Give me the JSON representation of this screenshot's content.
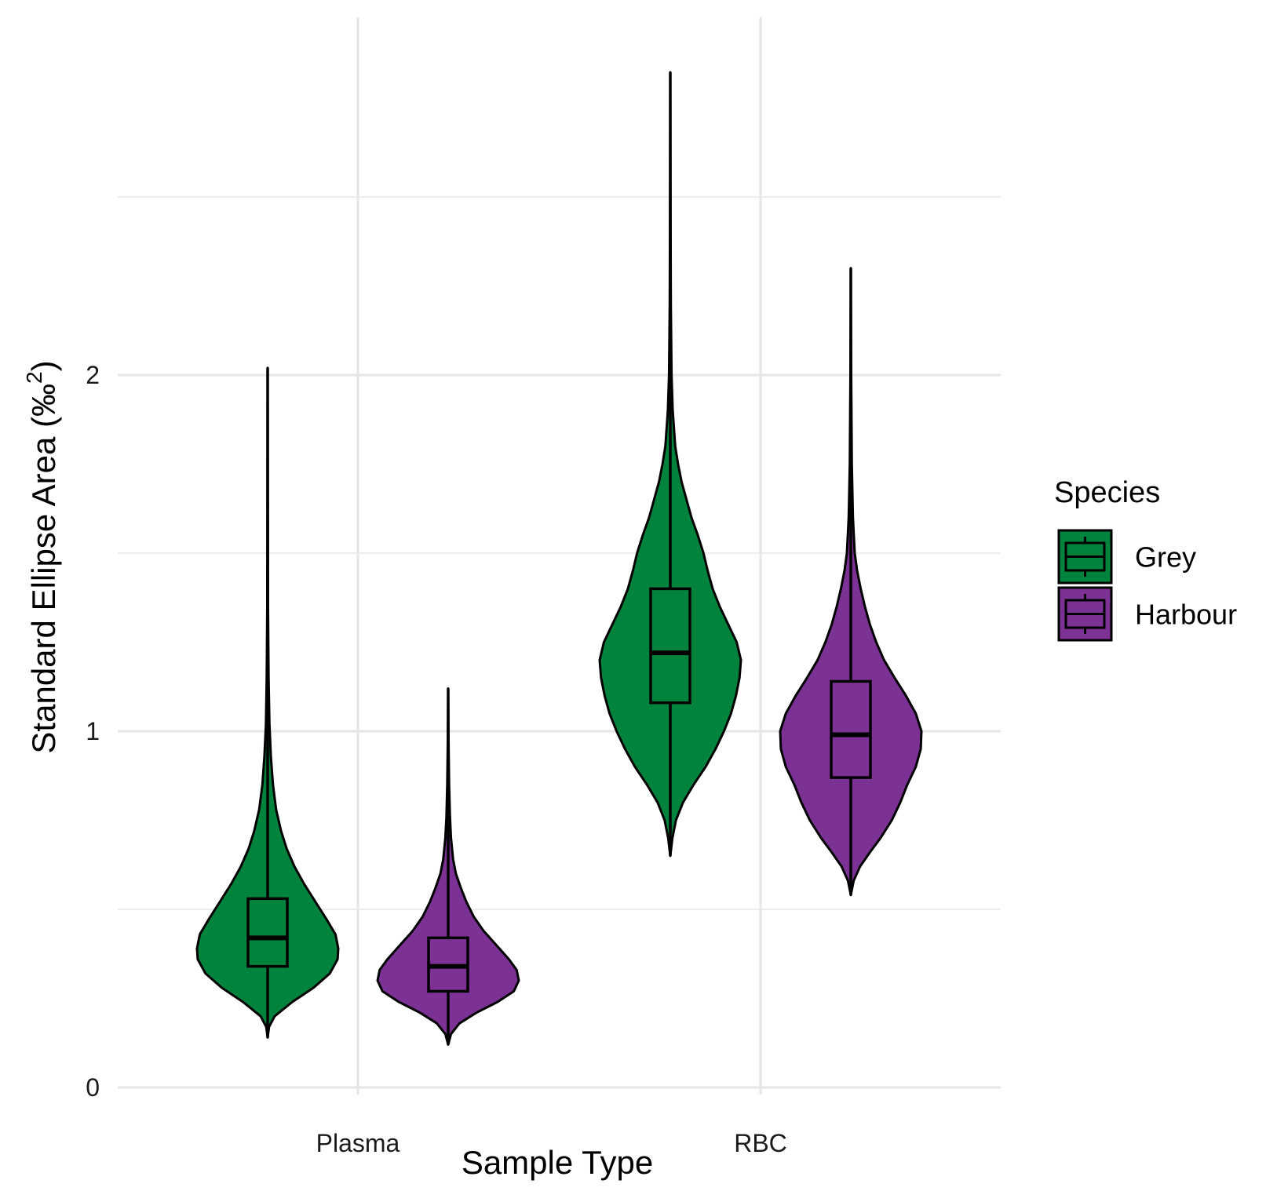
{
  "chart_data": {
    "type": "violin",
    "title": "",
    "xlabel": "Sample Type",
    "ylabel": "Standard Ellipse Area (‰²)",
    "ylabel_main": "Standard Ellipse Area (‰",
    "ylabel_sup": "2",
    "ylabel_close": ")",
    "ylim": [
      -0.008,
      3.0
    ],
    "yticks": [
      0,
      1,
      2
    ],
    "ytick_labels": [
      "0",
      "1",
      "2"
    ],
    "minor_yticks": [
      0.5,
      1.5,
      2.5
    ],
    "categories": [
      "Plasma",
      "RBC"
    ],
    "grid": true,
    "legend": {
      "title": "Species",
      "position": "right",
      "entries": [
        "Grey",
        "Harbour"
      ]
    },
    "series": [
      {
        "name": "Grey",
        "color": "#00843D",
        "violins": [
          {
            "category": "Plasma",
            "min": 0.14,
            "max": 2.02,
            "q1": 0.34,
            "median": 0.42,
            "q3": 0.53,
            "whisker_low": 0.14,
            "whisker_high": 0.8,
            "density": [
              [
                0.14,
                0.0
              ],
              [
                0.17,
                0.02
              ],
              [
                0.2,
                0.1
              ],
              [
                0.24,
                0.35
              ],
              [
                0.28,
                0.65
              ],
              [
                0.32,
                0.88
              ],
              [
                0.36,
                0.99
              ],
              [
                0.39,
                1.0
              ],
              [
                0.43,
                0.96
              ],
              [
                0.47,
                0.84
              ],
              [
                0.52,
                0.68
              ],
              [
                0.57,
                0.52
              ],
              [
                0.62,
                0.38
              ],
              [
                0.67,
                0.27
              ],
              [
                0.72,
                0.19
              ],
              [
                0.78,
                0.12
              ],
              [
                0.85,
                0.075
              ],
              [
                0.93,
                0.045
              ],
              [
                1.02,
                0.025
              ],
              [
                1.15,
                0.013
              ],
              [
                1.35,
                0.006
              ],
              [
                1.65,
                0.003
              ],
              [
                2.02,
                0.0
              ]
            ]
          },
          {
            "category": "RBC",
            "min": 0.65,
            "max": 2.85,
            "q1": 1.08,
            "median": 1.22,
            "q3": 1.4,
            "whisker_low": 0.65,
            "whisker_high": 1.9,
            "density": [
              [
                0.65,
                0.0
              ],
              [
                0.7,
                0.03
              ],
              [
                0.75,
                0.08
              ],
              [
                0.8,
                0.18
              ],
              [
                0.85,
                0.33
              ],
              [
                0.9,
                0.5
              ],
              [
                0.95,
                0.64
              ],
              [
                1.0,
                0.76
              ],
              [
                1.05,
                0.86
              ],
              [
                1.1,
                0.93
              ],
              [
                1.15,
                0.98
              ],
              [
                1.2,
                1.0
              ],
              [
                1.25,
                0.94
              ],
              [
                1.3,
                0.82
              ],
              [
                1.35,
                0.7
              ],
              [
                1.4,
                0.6
              ],
              [
                1.45,
                0.53
              ],
              [
                1.5,
                0.47
              ],
              [
                1.55,
                0.39
              ],
              [
                1.6,
                0.3
              ],
              [
                1.65,
                0.23
              ],
              [
                1.7,
                0.16
              ],
              [
                1.75,
                0.11
              ],
              [
                1.8,
                0.07
              ],
              [
                1.9,
                0.035
              ],
              [
                2.0,
                0.018
              ],
              [
                2.2,
                0.008
              ],
              [
                2.5,
                0.003
              ],
              [
                2.85,
                0.0
              ]
            ]
          }
        ]
      },
      {
        "name": "Harbour",
        "color": "#7B3294",
        "violins": [
          {
            "category": "Plasma",
            "min": 0.12,
            "max": 1.12,
            "q1": 0.27,
            "median": 0.34,
            "q3": 0.42,
            "whisker_low": 0.12,
            "whisker_high": 0.63,
            "density": [
              [
                0.12,
                0.0
              ],
              [
                0.15,
                0.04
              ],
              [
                0.18,
                0.16
              ],
              [
                0.21,
                0.4
              ],
              [
                0.24,
                0.7
              ],
              [
                0.27,
                0.93
              ],
              [
                0.3,
                1.0
              ],
              [
                0.33,
                0.97
              ],
              [
                0.36,
                0.86
              ],
              [
                0.4,
                0.68
              ],
              [
                0.44,
                0.5
              ],
              [
                0.48,
                0.36
              ],
              [
                0.52,
                0.26
              ],
              [
                0.56,
                0.18
              ],
              [
                0.6,
                0.11
              ],
              [
                0.64,
                0.07
              ],
              [
                0.7,
                0.04
              ],
              [
                0.76,
                0.025
              ],
              [
                0.85,
                0.013
              ],
              [
                0.95,
                0.007
              ],
              [
                1.12,
                0.0
              ]
            ]
          },
          {
            "category": "RBC",
            "min": 0.54,
            "max": 2.3,
            "q1": 0.87,
            "median": 0.99,
            "q3": 1.14,
            "whisker_low": 0.54,
            "whisker_high": 1.55,
            "density": [
              [
                0.54,
                0.0
              ],
              [
                0.58,
                0.04
              ],
              [
                0.62,
                0.13
              ],
              [
                0.66,
                0.27
              ],
              [
                0.7,
                0.42
              ],
              [
                0.75,
                0.58
              ],
              [
                0.8,
                0.7
              ],
              [
                0.85,
                0.8
              ],
              [
                0.9,
                0.92
              ],
              [
                0.95,
                0.99
              ],
              [
                1.0,
                1.0
              ],
              [
                1.05,
                0.92
              ],
              [
                1.1,
                0.78
              ],
              [
                1.15,
                0.62
              ],
              [
                1.2,
                0.47
              ],
              [
                1.25,
                0.36
              ],
              [
                1.3,
                0.27
              ],
              [
                1.35,
                0.2
              ],
              [
                1.4,
                0.14
              ],
              [
                1.45,
                0.09
              ],
              [
                1.5,
                0.055
              ],
              [
                1.6,
                0.03
              ],
              [
                1.75,
                0.015
              ],
              [
                2.0,
                0.006
              ],
              [
                2.3,
                0.0
              ]
            ]
          }
        ]
      }
    ]
  }
}
